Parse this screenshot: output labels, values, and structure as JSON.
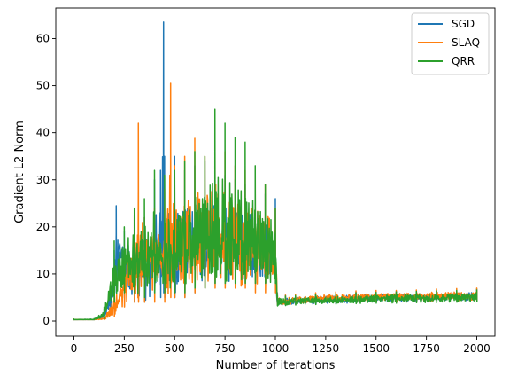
{
  "chart_data": {
    "type": "line",
    "title": "",
    "xlabel": "Number of iterations",
    "ylabel": "Gradient L2 Norm",
    "xlim": [
      -90,
      2090
    ],
    "ylim": [
      -3.2,
      66.5
    ],
    "xticks": [
      0,
      250,
      500,
      750,
      1000,
      1250,
      1500,
      1750,
      2000
    ],
    "yticks": [
      0,
      10,
      20,
      30,
      40,
      50,
      60
    ],
    "grid": false,
    "legend_position": "top-right",
    "series_note": "noisy series; values are an approximate envelope reading of the plot",
    "series": [
      {
        "name": "SGD",
        "color": "#1f77b4",
        "x": [
          0,
          100,
          150,
          200,
          210,
          250,
          300,
          350,
          400,
          430,
          445,
          450,
          500,
          550,
          600,
          650,
          700,
          750,
          800,
          850,
          900,
          950,
          1000,
          1010,
          1050,
          1100,
          1200,
          1300,
          1400,
          1500,
          1600,
          1700,
          1800,
          1900,
          2000
        ],
        "y_mid": [
          0.3,
          0.3,
          1,
          8,
          14,
          13,
          12,
          13,
          14,
          15,
          16,
          15,
          14,
          15,
          16,
          16,
          17,
          17,
          17,
          16,
          16,
          16,
          16,
          4,
          4,
          4.3,
          4.5,
          4.6,
          4.8,
          5,
          5,
          5.1,
          5.2,
          5.3,
          5.3
        ],
        "y_low": [
          0.3,
          0.3,
          0.5,
          3,
          6,
          5,
          4,
          4,
          5,
          5,
          6,
          5,
          5,
          5,
          6,
          7,
          8,
          8,
          8,
          8,
          8,
          8,
          8,
          3.3,
          3.3,
          3.5,
          3.6,
          3.7,
          3.8,
          4,
          4,
          4,
          4.1,
          4.2,
          4.2
        ],
        "y_high": [
          0.4,
          0.5,
          2.5,
          15,
          24.5,
          19,
          22.5,
          22,
          30,
          32,
          63.5,
          35,
          35,
          32,
          33,
          34,
          33,
          31,
          30,
          29,
          28,
          27,
          26,
          6,
          5.5,
          5.5,
          5.8,
          6,
          6.2,
          6.3,
          6.3,
          6.3,
          6.4,
          6.5,
          6.8
        ]
      },
      {
        "name": "SLAQ",
        "color": "#ff7f0e",
        "x": [
          0,
          100,
          150,
          200,
          250,
          300,
          320,
          350,
          400,
          450,
          480,
          500,
          550,
          600,
          650,
          700,
          750,
          800,
          850,
          900,
          950,
          1000,
          1010,
          1050,
          1100,
          1200,
          1300,
          1400,
          1500,
          1600,
          1700,
          1800,
          1900,
          2000
        ],
        "y_mid": [
          0.3,
          0.3,
          0.5,
          3,
          8,
          11,
          12,
          12,
          13,
          14,
          15,
          14,
          15,
          16,
          16,
          17,
          17,
          17,
          16,
          16,
          16,
          16,
          4.3,
          4.3,
          4.5,
          4.8,
          5,
          5,
          5.2,
          5.3,
          5.3,
          5.4,
          5.5,
          5.5
        ],
        "y_low": [
          0.3,
          0.3,
          0.3,
          1,
          3,
          4,
          4,
          4,
          4,
          4,
          5,
          5,
          5,
          6,
          7,
          7,
          7,
          7,
          7,
          6,
          6,
          6,
          3.4,
          3.4,
          3.6,
          3.8,
          4,
          4,
          4.1,
          4.2,
          4.2,
          4.2,
          4.3,
          4.3
        ],
        "y_high": [
          0.4,
          0.4,
          0.8,
          6,
          14,
          22,
          42,
          22,
          24,
          28,
          50.5,
          33,
          35,
          38.8,
          35,
          40,
          36,
          33,
          32,
          31,
          29,
          24,
          5.8,
          5.5,
          5.6,
          6,
          6.2,
          6.4,
          6.5,
          6.5,
          6.6,
          6.8,
          6.9,
          7
        ]
      },
      {
        "name": "QRR",
        "color": "#2ca02c",
        "x": [
          0,
          100,
          150,
          200,
          250,
          300,
          350,
          400,
          450,
          500,
          550,
          600,
          650,
          700,
          750,
          800,
          850,
          900,
          950,
          1000,
          1010,
          1050,
          1100,
          1200,
          1300,
          1400,
          1500,
          1600,
          1700,
          1800,
          1900,
          2000
        ],
        "y_mid": [
          0.3,
          0.3,
          1.5,
          9,
          13,
          13,
          13,
          14,
          14,
          15,
          15,
          16,
          16,
          17,
          17,
          17,
          16,
          16,
          16,
          16,
          4,
          4,
          4.2,
          4.4,
          4.5,
          4.6,
          4.8,
          4.9,
          5,
          5,
          5.1,
          5.2
        ],
        "y_low": [
          0.3,
          0.3,
          0.5,
          4,
          6,
          6,
          5,
          6,
          6,
          6,
          6,
          7,
          7,
          8,
          8,
          8,
          8,
          8,
          8,
          8,
          3.2,
          3.3,
          3.4,
          3.5,
          3.6,
          3.7,
          3.8,
          3.8,
          3.9,
          3.9,
          4,
          4
        ],
        "y_high": [
          0.4,
          0.5,
          3,
          17,
          20,
          24,
          26,
          32,
          31,
          32,
          34,
          36,
          35,
          45,
          42,
          39,
          38,
          33,
          29,
          24,
          5.5,
          5.3,
          5.4,
          5.6,
          5.8,
          6,
          6.1,
          6.2,
          6.3,
          6.4,
          6.5,
          6.6
        ]
      }
    ]
  }
}
